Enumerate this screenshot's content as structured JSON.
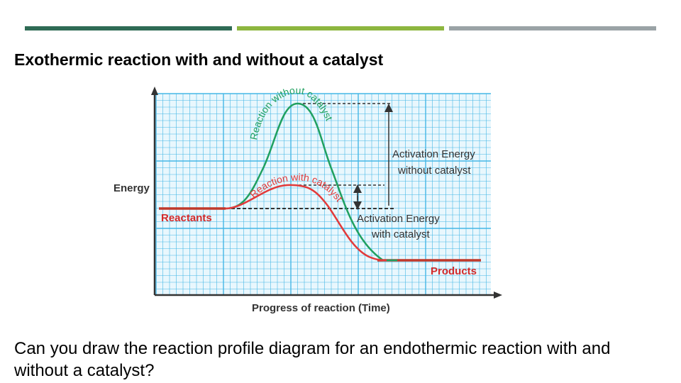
{
  "slide": {
    "title": "Exothermic reaction with and without a catalyst",
    "question": "Can you draw the reaction profile diagram for an endothermic reaction with and without a catalyst?",
    "accent_bars": [
      {
        "name": "bar-dark-green",
        "color": "#2f6b55"
      },
      {
        "name": "bar-light-green",
        "color": "#8db63f"
      },
      {
        "name": "bar-gray",
        "color": "#9aa3a6"
      }
    ]
  },
  "diagram": {
    "type": "energy-profile",
    "y_axis_label": "Energy",
    "x_axis_label": "Progress of reaction (Time)",
    "reactants_label": "Reactants",
    "products_label": "Products",
    "curve_without_label": "Reaction without catalyst",
    "curve_with_label": "Reaction with catalyst",
    "ae_without_line1": "Activation Energy",
    "ae_without_line2": "without catalyst",
    "ae_with_line1": "Activation Energy",
    "ae_with_line2": "with catalyst",
    "colors": {
      "grid": "#45b7e6",
      "grid_bg": "#e9f7fd",
      "curve_without": "#20a060",
      "curve_with": "#e23a3a",
      "baseline": "#c0392b",
      "axis": "#333333",
      "text": "#333333",
      "red_label": "#d22a2a"
    }
  }
}
